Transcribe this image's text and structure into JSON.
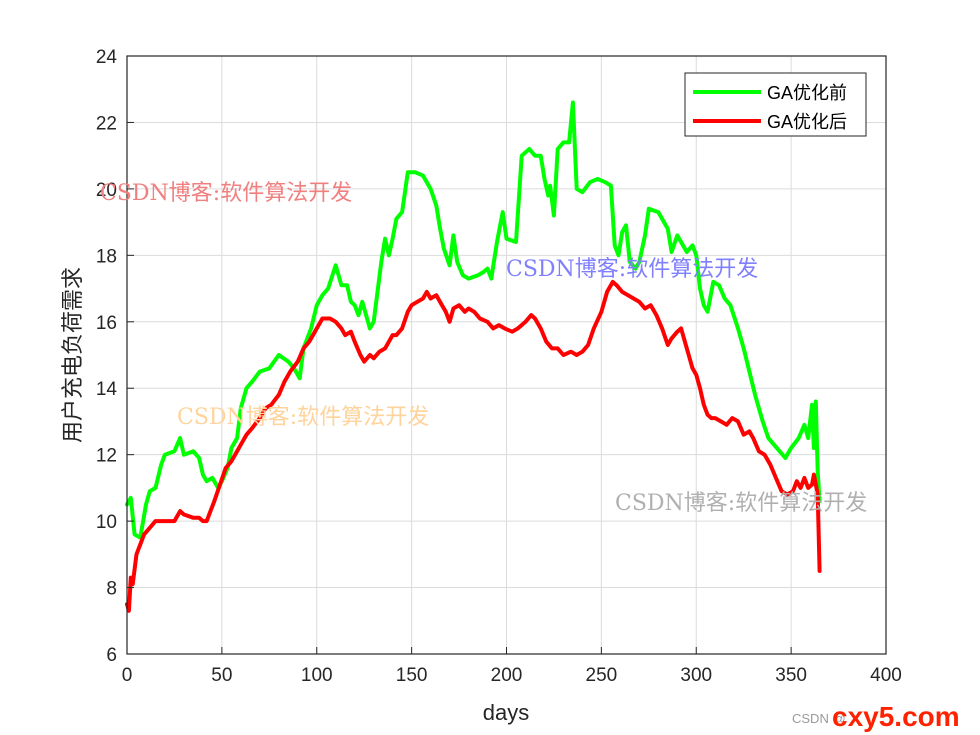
{
  "chart_data": {
    "type": "line",
    "xlabel": "days",
    "ylabel": "用户充电负荷需求",
    "xlim": [
      0,
      400
    ],
    "ylim": [
      6,
      24
    ],
    "xticks": [
      "0",
      "50",
      "100",
      "150",
      "200",
      "250",
      "300",
      "350",
      "400"
    ],
    "yticks": [
      "6",
      "8",
      "10",
      "12",
      "14",
      "16",
      "18",
      "20",
      "22",
      "24"
    ],
    "grid": true,
    "legend_position": "top-right",
    "series": [
      {
        "name": "GA优化前",
        "color": "#00ff00",
        "points": [
          [
            0,
            10.5
          ],
          [
            2,
            10.7
          ],
          [
            4,
            9.6
          ],
          [
            7,
            9.5
          ],
          [
            10,
            10.5
          ],
          [
            12,
            10.9
          ],
          [
            15,
            11.0
          ],
          [
            18,
            11.7
          ],
          [
            20,
            12.0
          ],
          [
            25,
            12.1
          ],
          [
            28,
            12.5
          ],
          [
            30,
            12.0
          ],
          [
            35,
            12.1
          ],
          [
            38,
            11.9
          ],
          [
            40,
            11.4
          ],
          [
            42,
            11.2
          ],
          [
            45,
            11.3
          ],
          [
            48,
            11.0
          ],
          [
            50,
            11.2
          ],
          [
            53,
            11.6
          ],
          [
            55,
            12.2
          ],
          [
            58,
            12.5
          ],
          [
            60,
            13.4
          ],
          [
            63,
            14.0
          ],
          [
            66,
            14.2
          ],
          [
            70,
            14.5
          ],
          [
            75,
            14.6
          ],
          [
            80,
            15.0
          ],
          [
            85,
            14.8
          ],
          [
            88,
            14.6
          ],
          [
            91,
            14.3
          ],
          [
            93,
            15.2
          ],
          [
            97,
            15.8
          ],
          [
            100,
            16.5
          ],
          [
            103,
            16.8
          ],
          [
            106,
            17.0
          ],
          [
            110,
            17.7
          ],
          [
            113,
            17.1
          ],
          [
            116,
            17.1
          ],
          [
            118,
            16.6
          ],
          [
            120,
            16.5
          ],
          [
            122,
            16.2
          ],
          [
            124,
            16.6
          ],
          [
            126,
            16.2
          ],
          [
            128,
            15.8
          ],
          [
            130,
            16.0
          ],
          [
            132,
            16.9
          ],
          [
            134,
            17.8
          ],
          [
            136,
            18.5
          ],
          [
            138,
            18.0
          ],
          [
            140,
            18.5
          ],
          [
            142,
            19.1
          ],
          [
            145,
            19.3
          ],
          [
            148,
            20.5
          ],
          [
            152,
            20.5
          ],
          [
            156,
            20.4
          ],
          [
            160,
            20.0
          ],
          [
            163,
            19.5
          ],
          [
            165,
            18.8
          ],
          [
            167,
            18.2
          ],
          [
            170,
            17.7
          ],
          [
            172,
            18.6
          ],
          [
            174,
            17.8
          ],
          [
            177,
            17.4
          ],
          [
            180,
            17.3
          ],
          [
            185,
            17.4
          ],
          [
            188,
            17.5
          ],
          [
            190,
            17.6
          ],
          [
            192,
            17.3
          ],
          [
            195,
            18.4
          ],
          [
            198,
            19.3
          ],
          [
            200,
            18.5
          ],
          [
            205,
            18.4
          ],
          [
            208,
            21.0
          ],
          [
            212,
            21.2
          ],
          [
            215,
            21.0
          ],
          [
            218,
            21.0
          ],
          [
            220,
            20.3
          ],
          [
            222,
            19.8
          ],
          [
            223,
            20.1
          ],
          [
            225,
            19.2
          ],
          [
            227,
            21.2
          ],
          [
            230,
            21.4
          ],
          [
            233,
            21.4
          ],
          [
            235,
            22.6
          ],
          [
            237,
            20.0
          ],
          [
            240,
            19.9
          ],
          [
            244,
            20.2
          ],
          [
            248,
            20.3
          ],
          [
            252,
            20.2
          ],
          [
            255,
            20.1
          ],
          [
            257,
            18.3
          ],
          [
            259,
            18.0
          ],
          [
            261,
            18.7
          ],
          [
            263,
            18.9
          ],
          [
            265,
            17.8
          ],
          [
            268,
            17.6
          ],
          [
            270,
            17.8
          ],
          [
            273,
            18.6
          ],
          [
            275,
            19.4
          ],
          [
            280,
            19.3
          ],
          [
            283,
            19.0
          ],
          [
            285,
            18.8
          ],
          [
            287,
            18.1
          ],
          [
            290,
            18.6
          ],
          [
            292,
            18.4
          ],
          [
            295,
            18.1
          ],
          [
            298,
            18.3
          ],
          [
            300,
            18.0
          ],
          [
            302,
            17.0
          ],
          [
            304,
            16.5
          ],
          [
            306,
            16.3
          ],
          [
            309,
            17.2
          ],
          [
            312,
            17.1
          ],
          [
            315,
            16.7
          ],
          [
            318,
            16.5
          ],
          [
            322,
            15.8
          ],
          [
            325,
            15.2
          ],
          [
            328,
            14.5
          ],
          [
            331,
            13.8
          ],
          [
            335,
            13.0
          ],
          [
            338,
            12.5
          ],
          [
            341,
            12.3
          ],
          [
            344,
            12.1
          ],
          [
            347,
            11.9
          ],
          [
            350,
            12.2
          ],
          [
            354,
            12.5
          ],
          [
            357,
            12.9
          ],
          [
            359,
            12.5
          ],
          [
            361,
            13.5
          ],
          [
            362,
            12.2
          ],
          [
            363,
            13.6
          ],
          [
            364,
            11.5
          ],
          [
            365,
            10.6
          ]
        ]
      },
      {
        "name": "GA优化后",
        "color": "#ff0000",
        "points": [
          [
            0,
            7.5
          ],
          [
            1,
            7.3
          ],
          [
            2,
            8.3
          ],
          [
            3,
            8.1
          ],
          [
            5,
            9.0
          ],
          [
            7,
            9.3
          ],
          [
            9,
            9.6
          ],
          [
            12,
            9.8
          ],
          [
            15,
            10.0
          ],
          [
            20,
            10.0
          ],
          [
            25,
            10.0
          ],
          [
            28,
            10.3
          ],
          [
            30,
            10.2
          ],
          [
            35,
            10.1
          ],
          [
            38,
            10.1
          ],
          [
            40,
            10.0
          ],
          [
            42,
            10.0
          ],
          [
            44,
            10.3
          ],
          [
            46,
            10.6
          ],
          [
            49,
            11.1
          ],
          [
            52,
            11.6
          ],
          [
            55,
            11.8
          ],
          [
            58,
            12.1
          ],
          [
            60,
            12.3
          ],
          [
            63,
            12.6
          ],
          [
            66,
            12.8
          ],
          [
            70,
            13.1
          ],
          [
            73,
            13.4
          ],
          [
            76,
            13.5
          ],
          [
            80,
            13.8
          ],
          [
            83,
            14.2
          ],
          [
            86,
            14.5
          ],
          [
            90,
            14.8
          ],
          [
            93,
            15.2
          ],
          [
            96,
            15.4
          ],
          [
            100,
            15.8
          ],
          [
            103,
            16.1
          ],
          [
            107,
            16.1
          ],
          [
            110,
            16.0
          ],
          [
            113,
            15.8
          ],
          [
            115,
            15.6
          ],
          [
            118,
            15.7
          ],
          [
            120,
            15.4
          ],
          [
            123,
            15.0
          ],
          [
            125,
            14.8
          ],
          [
            128,
            15.0
          ],
          [
            130,
            14.9
          ],
          [
            133,
            15.1
          ],
          [
            136,
            15.2
          ],
          [
            138,
            15.4
          ],
          [
            140,
            15.6
          ],
          [
            142,
            15.6
          ],
          [
            145,
            15.8
          ],
          [
            148,
            16.3
          ],
          [
            150,
            16.5
          ],
          [
            153,
            16.6
          ],
          [
            156,
            16.7
          ],
          [
            158,
            16.9
          ],
          [
            160,
            16.7
          ],
          [
            163,
            16.8
          ],
          [
            166,
            16.5
          ],
          [
            168,
            16.3
          ],
          [
            170,
            16.0
          ],
          [
            172,
            16.4
          ],
          [
            175,
            16.5
          ],
          [
            178,
            16.3
          ],
          [
            180,
            16.4
          ],
          [
            183,
            16.3
          ],
          [
            186,
            16.1
          ],
          [
            190,
            16.0
          ],
          [
            193,
            15.8
          ],
          [
            196,
            15.9
          ],
          [
            199,
            15.8
          ],
          [
            203,
            15.7
          ],
          [
            206,
            15.8
          ],
          [
            210,
            16.0
          ],
          [
            213,
            16.2
          ],
          [
            215,
            16.1
          ],
          [
            218,
            15.8
          ],
          [
            221,
            15.4
          ],
          [
            224,
            15.2
          ],
          [
            227,
            15.2
          ],
          [
            230,
            15.0
          ],
          [
            234,
            15.1
          ],
          [
            237,
            15.0
          ],
          [
            240,
            15.1
          ],
          [
            243,
            15.3
          ],
          [
            246,
            15.8
          ],
          [
            250,
            16.3
          ],
          [
            253,
            16.9
          ],
          [
            256,
            17.2
          ],
          [
            258,
            17.1
          ],
          [
            261,
            16.9
          ],
          [
            264,
            16.8
          ],
          [
            267,
            16.7
          ],
          [
            270,
            16.6
          ],
          [
            273,
            16.4
          ],
          [
            276,
            16.5
          ],
          [
            279,
            16.2
          ],
          [
            282,
            15.8
          ],
          [
            285,
            15.3
          ],
          [
            287,
            15.5
          ],
          [
            290,
            15.7
          ],
          [
            292,
            15.8
          ],
          [
            294,
            15.4
          ],
          [
            296,
            15.0
          ],
          [
            298,
            14.6
          ],
          [
            300,
            14.4
          ],
          [
            302,
            14.0
          ],
          [
            304,
            13.5
          ],
          [
            306,
            13.2
          ],
          [
            308,
            13.1
          ],
          [
            310,
            13.1
          ],
          [
            313,
            13.0
          ],
          [
            316,
            12.9
          ],
          [
            319,
            13.1
          ],
          [
            322,
            13.0
          ],
          [
            325,
            12.6
          ],
          [
            328,
            12.7
          ],
          [
            330,
            12.5
          ],
          [
            333,
            12.1
          ],
          [
            336,
            12.0
          ],
          [
            339,
            11.7
          ],
          [
            342,
            11.3
          ],
          [
            345,
            10.9
          ],
          [
            348,
            10.8
          ],
          [
            351,
            10.9
          ],
          [
            353,
            11.2
          ],
          [
            355,
            11.0
          ],
          [
            357,
            11.3
          ],
          [
            359,
            11.0
          ],
          [
            361,
            11.1
          ],
          [
            362,
            11.4
          ],
          [
            364,
            10.8
          ],
          [
            365,
            8.5
          ]
        ]
      }
    ]
  },
  "watermarks": [
    {
      "text": "CSDN博客:软件算法开发",
      "color": "#f08080"
    },
    {
      "text": "CSDN博客:软件算法开发",
      "color": "#8080ff"
    },
    {
      "text": "CSDN博客:软件算法开发",
      "color": "#ffd39b"
    },
    {
      "text": "CSDN博客:软件算法开发",
      "color": "#b0b0b0"
    }
  ],
  "credit": {
    "text": "CSDN @",
    "logo": "cxy5.com",
    "logo_color": "#ff2200"
  }
}
